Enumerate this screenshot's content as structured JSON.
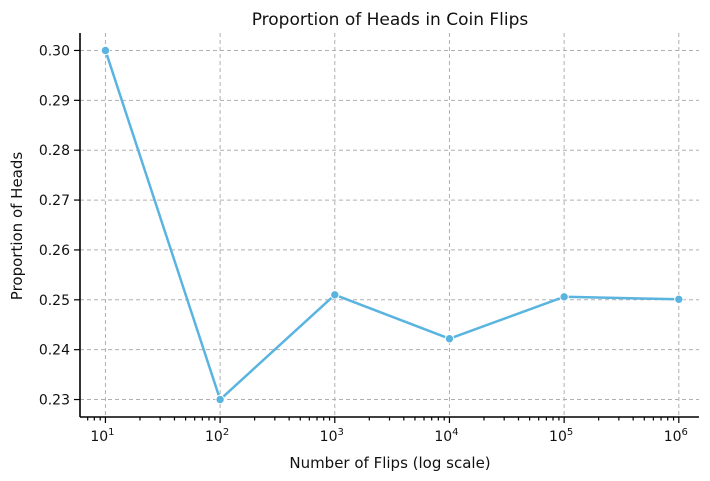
{
  "chart_data": {
    "type": "line",
    "title": "Proportion of Heads in Coin Flips",
    "xlabel": "Number of Flips (log scale)",
    "ylabel": "Proportion of Heads",
    "x_scale": "log",
    "x": [
      10,
      100,
      1000,
      10000,
      100000,
      1000000
    ],
    "series": [
      {
        "values": [
          0.3,
          0.23,
          0.251,
          0.2422,
          0.2506,
          0.2501
        ]
      }
    ],
    "xlim": [
      6.0,
      1500000
    ],
    "ylim": [
      0.2265,
      0.3035
    ],
    "x_tick_labels": [
      {
        "base": "10",
        "exp": "1"
      },
      {
        "base": "10",
        "exp": "2"
      },
      {
        "base": "10",
        "exp": "3"
      },
      {
        "base": "10",
        "exp": "4"
      },
      {
        "base": "10",
        "exp": "5"
      },
      {
        "base": "10",
        "exp": "6"
      }
    ],
    "y_ticks": [
      0.23,
      0.24,
      0.25,
      0.26,
      0.27,
      0.28,
      0.29,
      0.3
    ],
    "y_tick_labels": [
      "0.23",
      "0.24",
      "0.25",
      "0.26",
      "0.27",
      "0.28",
      "0.29",
      "0.30"
    ],
    "grid": true,
    "line_color": "#5ab4e0",
    "marker": "circle"
  }
}
